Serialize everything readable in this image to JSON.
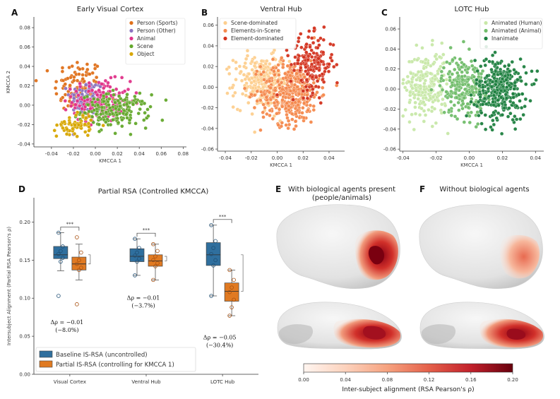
{
  "panel_labels": [
    "A",
    "B",
    "C",
    "D",
    "E",
    "F"
  ],
  "colors": {
    "A": [
      "#e0701a",
      "#8c72c0",
      "#e0338a",
      "#64a82c",
      "#d8a600"
    ],
    "B": [
      "#fdcf8f",
      "#f58a4e",
      "#d3321e"
    ],
    "C": [
      "#c8e8a8",
      "#71bd6b",
      "#1e8040"
    ],
    "baseline": "#2f6f9e",
    "partial": "#e07a22"
  },
  "chart_data": [
    {
      "type": "scatter",
      "id": "A",
      "title": "Early Visual Cortex",
      "xlabel": "KMCCA 1",
      "ylabel": "KMCCA 2",
      "xlim": [
        -0.056,
        0.083
      ],
      "ylim": [
        -0.043,
        0.091
      ],
      "xticks": [
        "-0.04",
        "-0.02",
        "0.00",
        "0.02",
        "0.04",
        "0.06",
        "0.08"
      ],
      "yticks": [
        "-0.04",
        "-0.02",
        "0.00",
        "0.02",
        "0.04",
        "0.06",
        "0.08"
      ],
      "legend_position": "top-right",
      "series": [
        {
          "name": "Person (Sports)",
          "center": [
            -0.015,
            0.018
          ],
          "spread": [
            0.016,
            0.022
          ],
          "n": 110
        },
        {
          "name": "Person (Other)",
          "center": [
            -0.008,
            0.008
          ],
          "spread": [
            0.011,
            0.013
          ],
          "n": 90
        },
        {
          "name": "Animal",
          "center": [
            0.006,
            0.004
          ],
          "spread": [
            0.019,
            0.015
          ],
          "n": 170
        },
        {
          "name": "Scene",
          "center": [
            0.018,
            -0.006
          ],
          "spread": [
            0.022,
            0.012
          ],
          "n": 190
        },
        {
          "name": "Object",
          "center": [
            -0.018,
            -0.02
          ],
          "spread": [
            0.012,
            0.009
          ],
          "n": 60
        }
      ]
    },
    {
      "type": "scatter",
      "id": "B",
      "title": "Ventral Hub",
      "xlabel": "KMCCA 1",
      "ylabel": "",
      "xlim": [
        -0.046,
        0.052
      ],
      "ylim": [
        -0.062,
        0.068
      ],
      "xticks": [
        "-0.04",
        "-0.02",
        "0.00",
        "0.02",
        "0.04"
      ],
      "yticks": [
        "-0.06",
        "-0.04",
        "-0.02",
        "0.00",
        "0.02",
        "0.04",
        "0.06"
      ],
      "legend_position": "top-left",
      "series": [
        {
          "name": "Scene-dominated",
          "center": [
            -0.012,
            0.005
          ],
          "spread": [
            0.015,
            0.018
          ],
          "n": 260
        },
        {
          "name": "Elements-in-Scene",
          "center": [
            0.01,
            -0.005
          ],
          "spread": [
            0.016,
            0.022
          ],
          "n": 380
        },
        {
          "name": "Element-dominated",
          "center": [
            0.027,
            0.022
          ],
          "spread": [
            0.012,
            0.02
          ],
          "n": 170
        }
      ]
    },
    {
      "type": "scatter",
      "id": "C",
      "title": "LOTC Hub",
      "xlabel": "KMCCA 1",
      "ylabel": "",
      "xlim": [
        -0.042,
        0.045
      ],
      "ylim": [
        -0.062,
        0.072
      ],
      "xticks": [
        "-0.04",
        "-0.02",
        "0.00",
        "0.02",
        "0.04"
      ],
      "yticks": [
        "-0.06",
        "-0.04",
        "-0.02",
        "0.00",
        "0.02",
        "0.04",
        "0.06"
      ],
      "legend_position": "top-right",
      "series": [
        {
          "name": "Animated (Human)",
          "center": [
            -0.026,
            0.004
          ],
          "spread": [
            0.009,
            0.024
          ],
          "n": 230
        },
        {
          "name": "Animated (Animal)",
          "center": [
            -0.004,
            0.003
          ],
          "spread": [
            0.009,
            0.022
          ],
          "n": 220
        },
        {
          "name": "Inanimate",
          "center": [
            0.019,
            0.0
          ],
          "spread": [
            0.011,
            0.022
          ],
          "n": 330
        }
      ]
    },
    {
      "type": "box",
      "id": "D",
      "title": "Partial RSA (Controlled KMCCA)",
      "ylabel": "Intersubject Alignment (Partial RSA Pearson's ρ)",
      "ylim": [
        0.0,
        0.232
      ],
      "yticks": [
        "0.00",
        "0.05",
        "0.10",
        "0.15",
        "0.20"
      ],
      "categories": [
        "Visual Cortex",
        "Ventral Hub",
        "LOTC Hub"
      ],
      "significance": [
        "***",
        "***",
        "***"
      ],
      "delta_lines": [
        [
          "Δρ = −0.01",
          "(−8.0%)"
        ],
        [
          "Δρ = −0.01",
          "(−3.7%)"
        ],
        [
          "Δρ = −0.05",
          "(−30.4%)"
        ]
      ],
      "delta_y": [
        0.066,
        0.098,
        0.046
      ],
      "legend_position": "lower-left",
      "series": [
        {
          "name": "Baseline IS-RSA (uncontrolled)",
          "stats": [
            {
              "q1": 0.152,
              "med": 0.157,
              "q3": 0.168,
              "wlo": 0.136,
              "whi": 0.186
            },
            {
              "q1": 0.148,
              "med": 0.155,
              "q3": 0.165,
              "wlo": 0.13,
              "whi": 0.178
            },
            {
              "q1": 0.143,
              "med": 0.157,
              "q3": 0.173,
              "wlo": 0.103,
              "whi": 0.196
            }
          ],
          "points": [
            [
              0.103,
              0.148,
              0.153,
              0.158,
              0.162,
              0.168,
              0.186
            ],
            [
              0.13,
              0.148,
              0.152,
              0.156,
              0.16,
              0.166,
              0.178
            ],
            [
              0.103,
              0.143,
              0.15,
              0.158,
              0.166,
              0.175,
              0.196
            ]
          ]
        },
        {
          "name": "Partial IS-RSA (controlling for KMCCA 1)",
          "stats": [
            {
              "q1": 0.137,
              "med": 0.145,
              "q3": 0.154,
              "wlo": 0.124,
              "whi": 0.171
            },
            {
              "q1": 0.142,
              "med": 0.149,
              "q3": 0.157,
              "wlo": 0.124,
              "whi": 0.171
            },
            {
              "q1": 0.096,
              "med": 0.109,
              "q3": 0.12,
              "wlo": 0.077,
              "whi": 0.137
            }
          ],
          "points": [
            [
              0.092,
              0.137,
              0.14,
              0.145,
              0.15,
              0.16,
              0.18
            ],
            [
              0.124,
              0.142,
              0.146,
              0.15,
              0.155,
              0.162,
              0.171
            ],
            [
              0.077,
              0.088,
              0.098,
              0.108,
              0.114,
              0.124,
              0.137
            ]
          ]
        }
      ]
    },
    {
      "type": "heatmap",
      "id": "E-F",
      "title": "Inter-subject alignment (RSA Pearson's ρ)",
      "colorbar_ticks": [
        "0.00",
        "0.04",
        "0.08",
        "0.12",
        "0.16",
        "0.20"
      ],
      "colorbar_range": [
        0.0,
        0.2
      ]
    }
  ],
  "brain": {
    "E_title_line1": "With biological agents present",
    "E_title_line2": "(people/animals)",
    "F_title": "Without biological agents"
  }
}
